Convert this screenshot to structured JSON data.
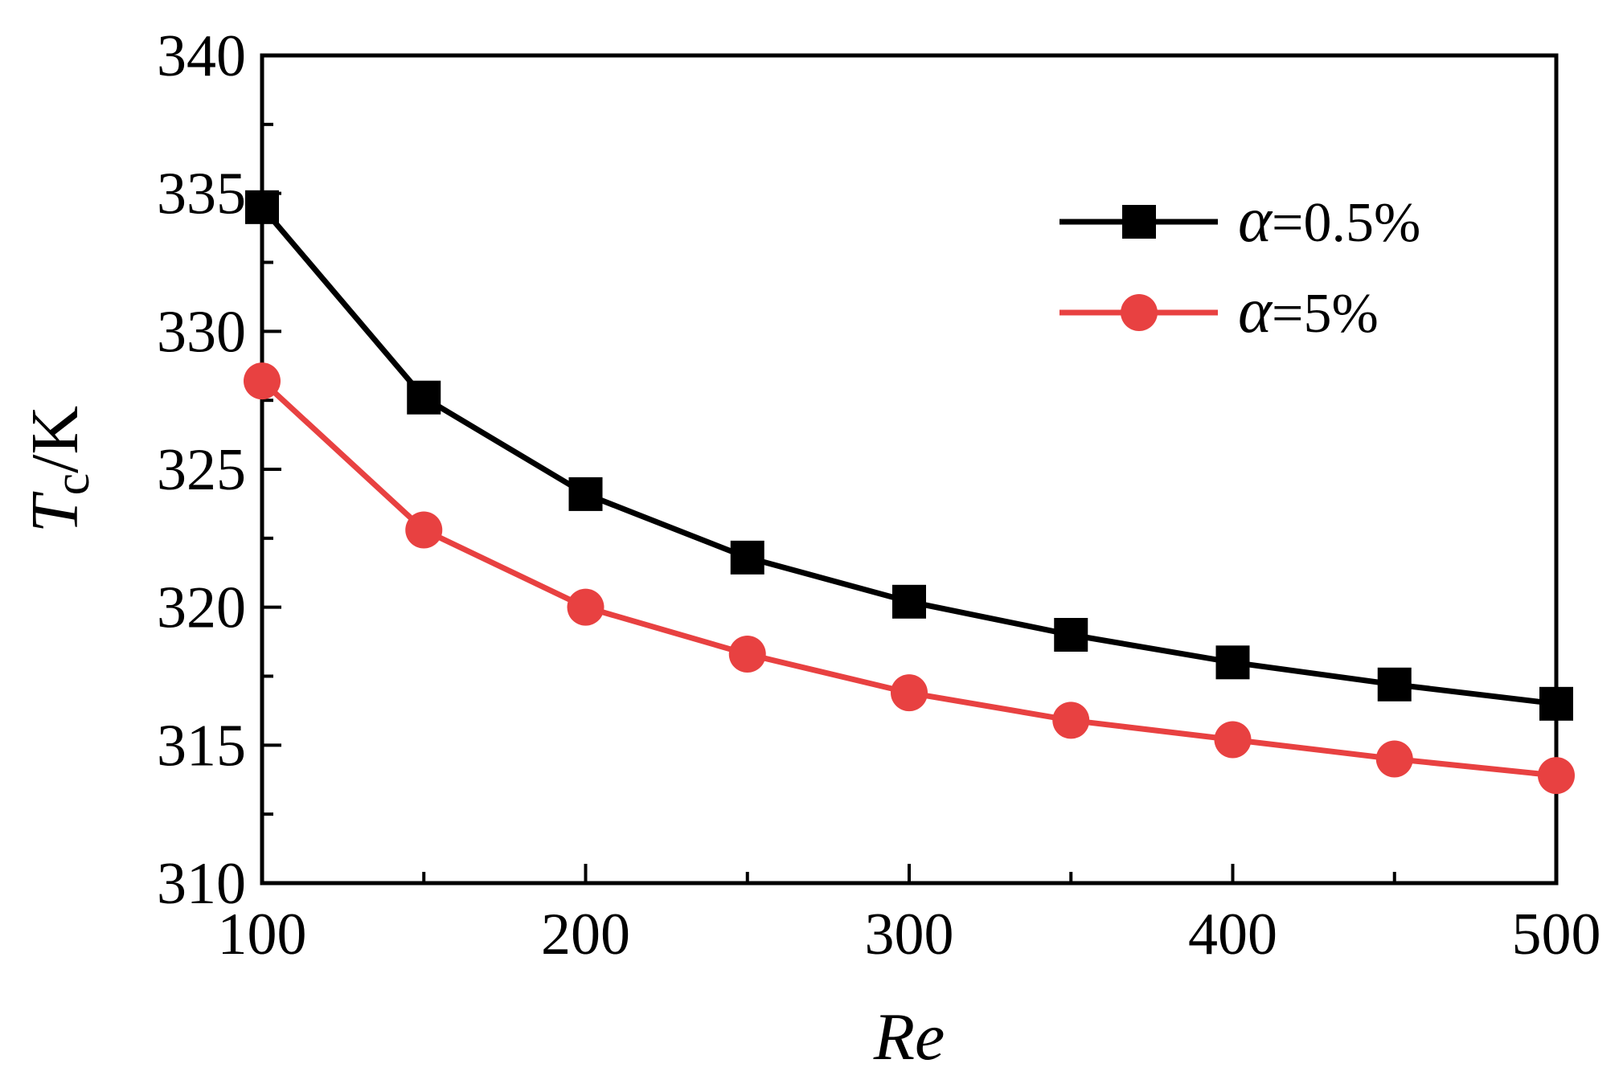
{
  "chart_data": {
    "type": "line",
    "x": [
      100,
      150,
      200,
      250,
      300,
      350,
      400,
      450,
      500
    ],
    "series": [
      {
        "name": "α=0.5%",
        "symbol": "α",
        "suffix": "=0.5%",
        "color": "#000000",
        "marker": "square",
        "values": [
          334.5,
          327.6,
          324.1,
          321.8,
          320.2,
          319.0,
          318.0,
          317.2,
          316.5
        ]
      },
      {
        "name": "α=5%",
        "symbol": "α",
        "suffix": "=5%",
        "color": "#e84141",
        "marker": "circle",
        "values": [
          328.2,
          322.8,
          320.0,
          318.3,
          316.9,
          315.9,
          315.2,
          314.5,
          313.9
        ]
      }
    ],
    "xlabel": "Re",
    "ylabel_main": "T",
    "ylabel_sub": "c",
    "ylabel_unit": "/K",
    "xlim": [
      100,
      500
    ],
    "ylim": [
      310,
      340
    ],
    "xticks": [
      "100",
      "200",
      "300",
      "400",
      "500"
    ],
    "yticks": [
      "310",
      "315",
      "320",
      "325",
      "330",
      "335",
      "340"
    ],
    "legend_position": "top-right",
    "grid": false
  }
}
